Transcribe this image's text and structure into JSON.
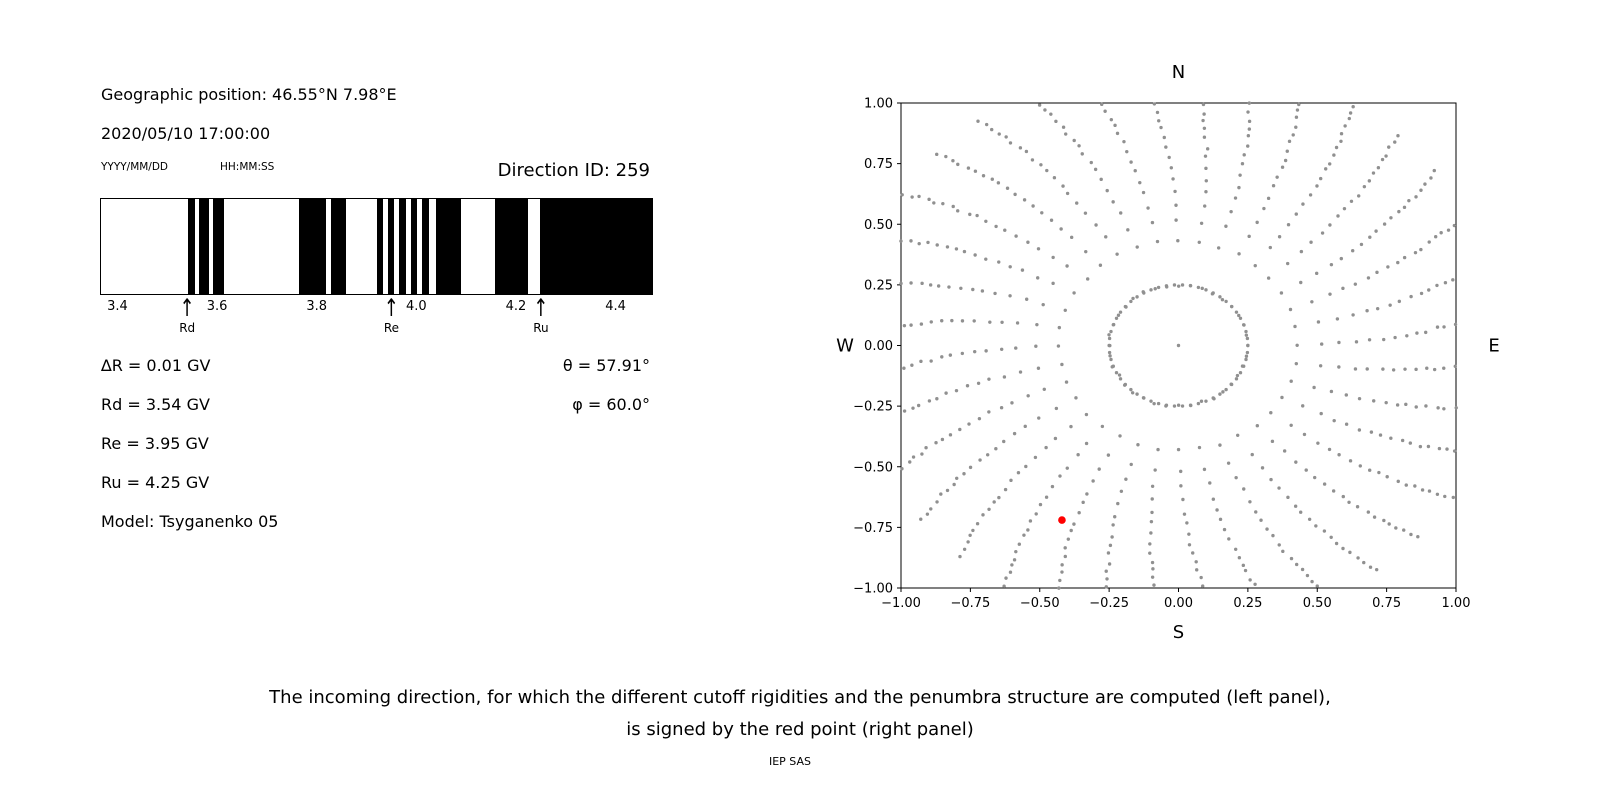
{
  "colors": {
    "dot_gray": "#909090",
    "red": "#ff0000",
    "black": "#000000",
    "background": "#ffffff"
  },
  "header": {
    "geographic_position": "Geographic position: 46.55°N 7.98°E",
    "datetime": "2020/05/10 17:00:00",
    "date_format_label": "YYYY/MM/DD",
    "time_format_label": "HH:MM:SS",
    "direction_id": "Direction ID: 259"
  },
  "parameters": {
    "delta_r": "∆R = 0.01 GV",
    "rd": "Rd = 3.54 GV",
    "re": "Re = 3.95 GV",
    "ru": "Ru = 4.25 GV",
    "model": "Model: Tsyganenko 05",
    "theta": "θ = 57.91°",
    "phi": "φ = 60.0°"
  },
  "caption": {
    "line1": "The incoming direction, for which the different cutoff rigidities and the penumbra structure are computed (left panel),",
    "line2": "is signed by the red point (right panel)",
    "credit": "IEP SAS"
  },
  "chart_data": [
    {
      "type": "bar",
      "name": "penumbra-structure",
      "title": "",
      "xlabel": "",
      "xlim": [
        3.365,
        4.475
      ],
      "xtick_values": [
        3.4,
        3.6,
        3.8,
        4.0,
        4.2,
        4.4
      ],
      "xtick_labels": [
        "3.4",
        "3.6",
        "3.8",
        "4.0",
        "4.2",
        "4.4"
      ],
      "black_bands_gv": [
        [
          3.54,
          3.554
        ],
        [
          3.563,
          3.582
        ],
        [
          3.591,
          3.613
        ],
        [
          3.764,
          3.818
        ],
        [
          3.828,
          3.858
        ],
        [
          3.92,
          3.933
        ],
        [
          3.943,
          3.956
        ],
        [
          3.966,
          3.979
        ],
        [
          3.989,
          4.002
        ],
        [
          4.012,
          4.025
        ],
        [
          4.04,
          4.09
        ],
        [
          4.158,
          4.226
        ],
        [
          4.25,
          4.475
        ]
      ],
      "markers": [
        {
          "label": "Rd",
          "value": 3.54
        },
        {
          "label": "Re",
          "value": 3.95
        },
        {
          "label": "Ru",
          "value": 4.25
        }
      ]
    },
    {
      "type": "scatter",
      "name": "asymptotic-directions-map",
      "xlim": [
        -1,
        1
      ],
      "ylim": [
        -1,
        1
      ],
      "xtick_values": [
        -1,
        -0.75,
        -0.5,
        -0.25,
        0,
        0.25,
        0.5,
        0.75,
        1
      ],
      "xtick_labels": [
        "−1.00",
        "−0.75",
        "−0.50",
        "−0.25",
        "0.00",
        "0.25",
        "0.50",
        "0.75",
        "1.00"
      ],
      "ytick_values": [
        -1,
        -0.75,
        -0.5,
        -0.25,
        0,
        0.25,
        0.5,
        0.75,
        1
      ],
      "ytick_labels": [
        "−1.00",
        "−0.75",
        "−0.50",
        "−0.25",
        "0.00",
        "0.25",
        "0.50",
        "0.75",
        "1.00"
      ],
      "compass": {
        "top": "N",
        "bottom": "S",
        "left": "W",
        "right": "E"
      },
      "pattern": {
        "n_rays": 36,
        "ray_points": 20,
        "r_inner": 0.25,
        "r_outer": 1.17,
        "density_exp": 0.55,
        "spiral_twist": 0.16,
        "ring_points": 54,
        "center_point": true,
        "dot_radius": 1.7,
        "red_radius": 3.8
      },
      "red_point": {
        "x": -0.42,
        "y": -0.72,
        "color": "#ff0000"
      }
    }
  ]
}
